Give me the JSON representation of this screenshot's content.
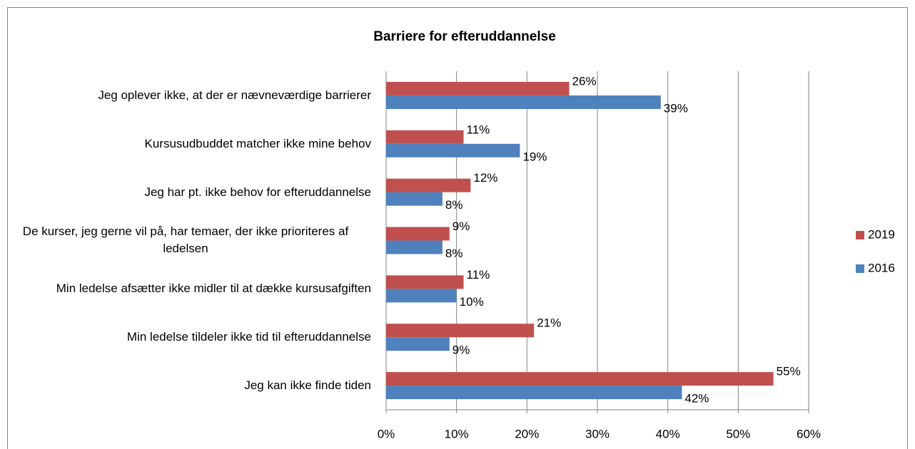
{
  "chart_data": {
    "type": "barh",
    "title": "Barriere for efteruddannelse",
    "categories": [
      "Jeg oplever ikke, at der er nævneværdige barrierer",
      "Kursusudbuddet matcher ikke mine behov",
      "Jeg har pt. ikke behov for efteruddannelse",
      "De kurser, jeg gerne vil på, har temaer, der ikke prioriteres af ledelsen",
      "Min ledelse afsætter ikke midler til at dække kursusafgiften",
      "Min ledelse tildeler ikke tid til efteruddannelse",
      "Jeg kan ikke finde tiden"
    ],
    "series": [
      {
        "name": "2019",
        "color": "#c0504d",
        "values": [
          26,
          11,
          12,
          9,
          11,
          21,
          55
        ],
        "value_labels": [
          "26%",
          "11%",
          "12%",
          "9%",
          "11%",
          "21%",
          "55%"
        ]
      },
      {
        "name": "2016",
        "color": "#4f81bd",
        "values": [
          39,
          19,
          8,
          8,
          10,
          9,
          42
        ],
        "value_labels": [
          "39%",
          "19%",
          "8%",
          "8%",
          "10%",
          "9%",
          "42%"
        ]
      }
    ],
    "xlim": [
      0,
      60
    ],
    "xticks": [
      {
        "value": 0,
        "label": "0%"
      },
      {
        "value": 10,
        "label": "10%"
      },
      {
        "value": 20,
        "label": "20%"
      },
      {
        "value": 30,
        "label": "30%"
      },
      {
        "value": 40,
        "label": "40%"
      },
      {
        "value": 50,
        "label": "50%"
      },
      {
        "value": 60,
        "label": "60%"
      }
    ],
    "grid": true,
    "legend": "right"
  }
}
